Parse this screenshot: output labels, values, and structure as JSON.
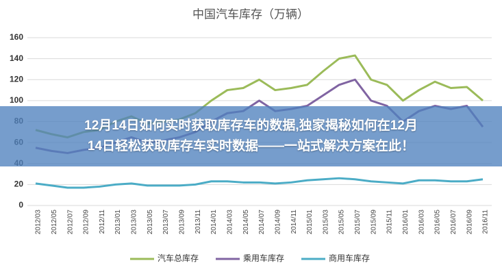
{
  "chart_data": {
    "type": "line",
    "title": "中国汽车库存（万辆）",
    "categories": [
      "2012/03",
      "2012/05",
      "2012/07",
      "2012/09",
      "2012/11",
      "2013/01",
      "2013/03",
      "2013/05",
      "2013/07",
      "2013/09",
      "2013/11",
      "2014/01",
      "2014/03",
      "2014/05",
      "2014/07",
      "2014/09",
      "2014/11",
      "2015/01",
      "2015/03",
      "2015/05",
      "2015/07",
      "2015/09",
      "2015/11",
      "2016/01",
      "2016/03",
      "2016/05",
      "2016/07",
      "2016/09",
      "2016/11"
    ],
    "series": [
      {
        "name": "汽车总库存",
        "color": "#9bbb59",
        "values": [
          72,
          68,
          65,
          70,
          72,
          80,
          85,
          78,
          80,
          82,
          88,
          100,
          110,
          112,
          120,
          110,
          112,
          115,
          128,
          140,
          143,
          120,
          115,
          100,
          110,
          118,
          112,
          113,
          100
        ]
      },
      {
        "name": "乘用车库存",
        "color": "#8064a2",
        "values": [
          55,
          52,
          50,
          53,
          55,
          60,
          65,
          60,
          62,
          65,
          70,
          80,
          88,
          90,
          100,
          90,
          92,
          95,
          105,
          115,
          120,
          100,
          95,
          80,
          90,
          95,
          92,
          95,
          75
        ]
      },
      {
        "name": "商用车库存",
        "color": "#4bacc6",
        "values": [
          21,
          19,
          17,
          17,
          18,
          20,
          21,
          19,
          19,
          19,
          20,
          23,
          23,
          22,
          22,
          21,
          22,
          24,
          25,
          26,
          25,
          23,
          22,
          21,
          24,
          24,
          23,
          23,
          25
        ]
      }
    ],
    "ylim": [
      0,
      160
    ],
    "yticks": [
      0,
      20,
      40,
      60,
      80,
      100,
      120,
      140,
      160
    ],
    "grid": true
  },
  "banner": {
    "lines": [
      "12月14日如何实时获取库存车的数据,独家揭秘如何在12月",
      "14日轻松获取库存车实时数据——一站式解决方案在此！"
    ]
  }
}
